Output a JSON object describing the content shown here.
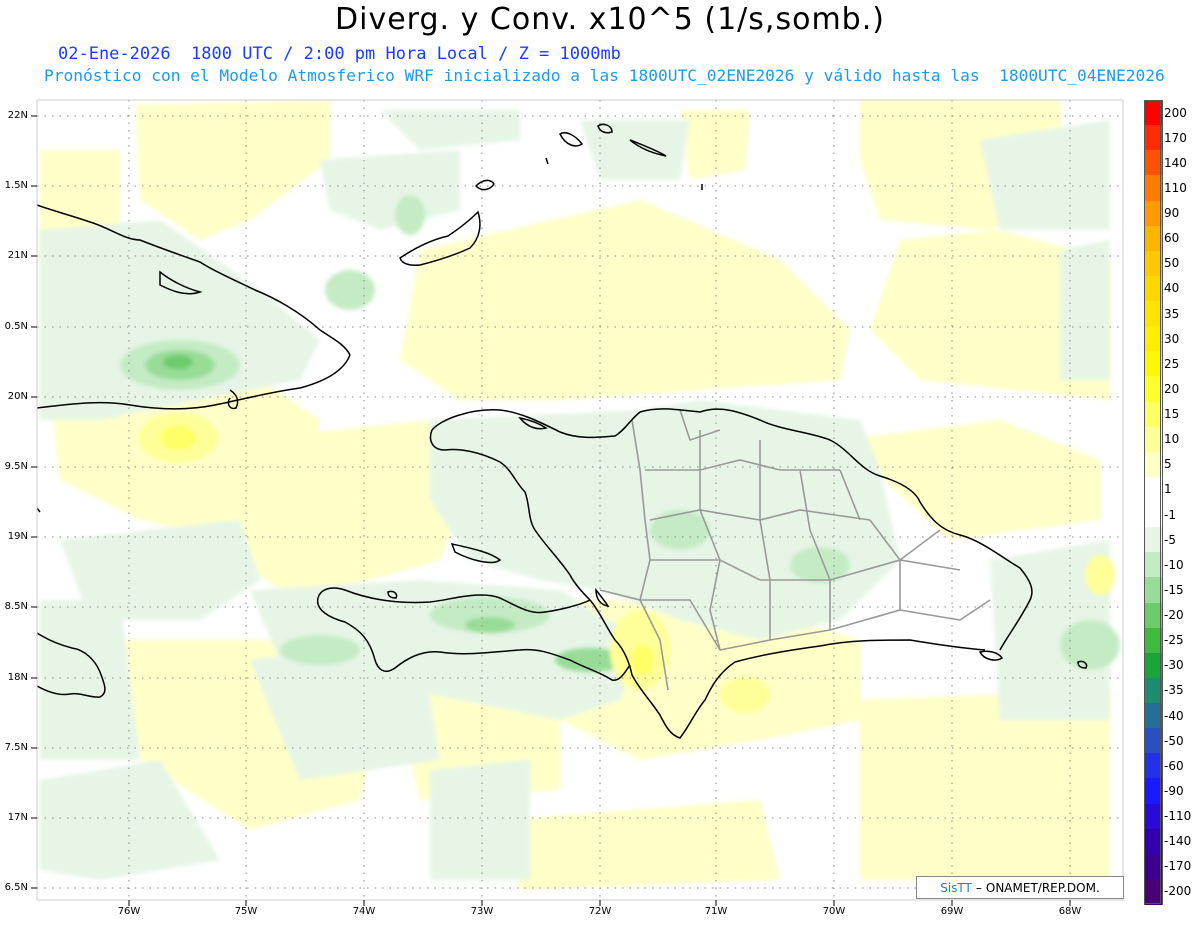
{
  "header": {
    "title": "Diverg. y Conv. x10^5 (1/s,somb.)",
    "subtitle_line1": "02-Ene-2026  1800 UTC / 2:00 pm Hora Local / Z = 1000mb",
    "subtitle_line2": "Pronóstico con el Modelo Atmosferico WRF inicializado a las 1800UTC_02ENE2026 y válido hasta las  1800UTC_04ENE2026"
  },
  "axes": {
    "lat_labels": [
      "22N",
      "1.5N",
      "21N",
      "0.5N",
      "20N",
      "9.5N",
      "19N",
      "8.5N",
      "18N",
      "7.5N",
      "17N",
      "6.5N"
    ],
    "lon_labels": [
      "76W",
      "75W",
      "74W",
      "73W",
      "72W",
      "71W",
      "70W",
      "69W",
      "68W"
    ]
  },
  "colorbar": {
    "labels": [
      "200",
      "170",
      "140",
      "110",
      "90",
      "60",
      "50",
      "40",
      "35",
      "30",
      "25",
      "20",
      "15",
      "10",
      "5",
      "1",
      "-1",
      "-5",
      "-10",
      "-15",
      "-20",
      "-25",
      "-30",
      "-35",
      "-40",
      "-50",
      "-60",
      "-90",
      "-110",
      "-140",
      "-170",
      "-200"
    ],
    "colors": [
      "#ff0000",
      "#ff2a00",
      "#ff5200",
      "#ff7a00",
      "#ff9a00",
      "#ffb400",
      "#ffc800",
      "#ffd700",
      "#ffe400",
      "#ffee00",
      "#fff600",
      "#ffff2e",
      "#ffff66",
      "#ffff99",
      "#ffffc8",
      "#ffffff",
      "#ffffff",
      "#e6f5e6",
      "#c4ebc4",
      "#98dc98",
      "#6ccc6c",
      "#3fba3f",
      "#19a53a",
      "#1d8c6e",
      "#256e96",
      "#2a4fbf",
      "#2430e6",
      "#1a1aff",
      "#2a0ad6",
      "#3300b0",
      "#3c0090",
      "#470078"
    ]
  },
  "credit": {
    "logo": "SisTT",
    "dash": "–",
    "org": "ONAMET/REP.DOM."
  }
}
